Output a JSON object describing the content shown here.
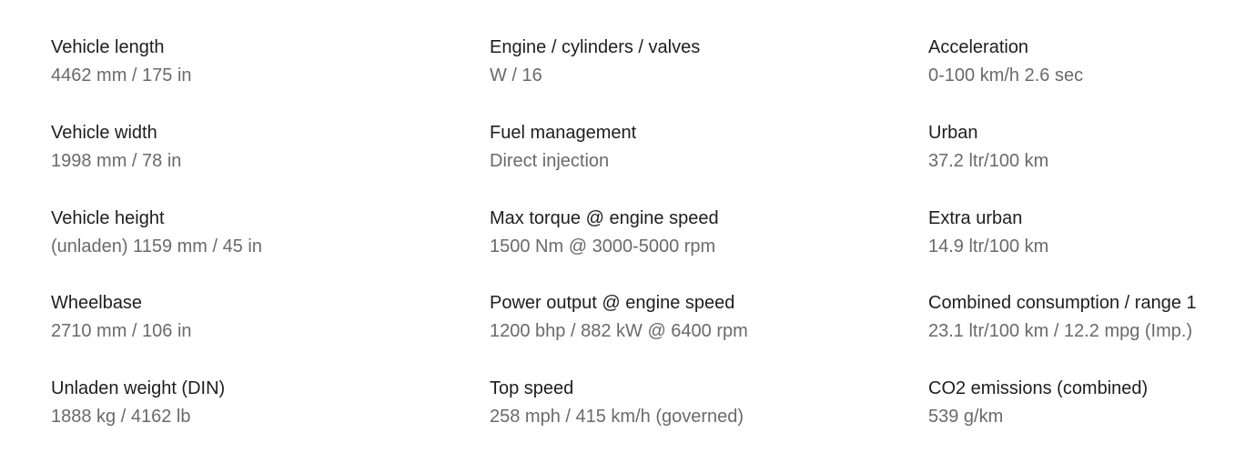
{
  "specs": {
    "columns": [
      {
        "items": [
          {
            "label": "Vehicle length",
            "value": "4462 mm / 175 in"
          },
          {
            "label": "Vehicle width",
            "value": "1998 mm / 78 in"
          },
          {
            "label": "Vehicle height",
            "value": "(unladen) 1159 mm / 45 in"
          },
          {
            "label": "Wheelbase",
            "value": "2710 mm / 106 in"
          },
          {
            "label": "Unladen weight (DIN)",
            "value": "1888 kg / 4162 lb"
          }
        ]
      },
      {
        "items": [
          {
            "label": "Engine / cylinders / valves",
            "value": "W / 16"
          },
          {
            "label": "Fuel management",
            "value": "Direct injection"
          },
          {
            "label": "Max torque @ engine speed",
            "value": "1500 Nm @ 3000-5000 rpm"
          },
          {
            "label": "Power output @ engine speed",
            "value": "1200 bhp / 882 kW @ 6400 rpm"
          },
          {
            "label": "Top speed",
            "value": "258 mph / 415 km/h (governed)"
          }
        ]
      },
      {
        "items": [
          {
            "label": "Acceleration",
            "value": "0-100 km/h 2.6 sec"
          },
          {
            "label": "Urban",
            "value": "37.2 ltr/100 km"
          },
          {
            "label": "Extra urban",
            "value": "14.9 ltr/100 km"
          },
          {
            "label": "Combined consumption / range 1",
            "value": "23.1 ltr/100 km / 12.2 mpg (Imp.)"
          },
          {
            "label": "CO2 emissions (combined)",
            "value": "539 g/km"
          }
        ]
      }
    ]
  }
}
